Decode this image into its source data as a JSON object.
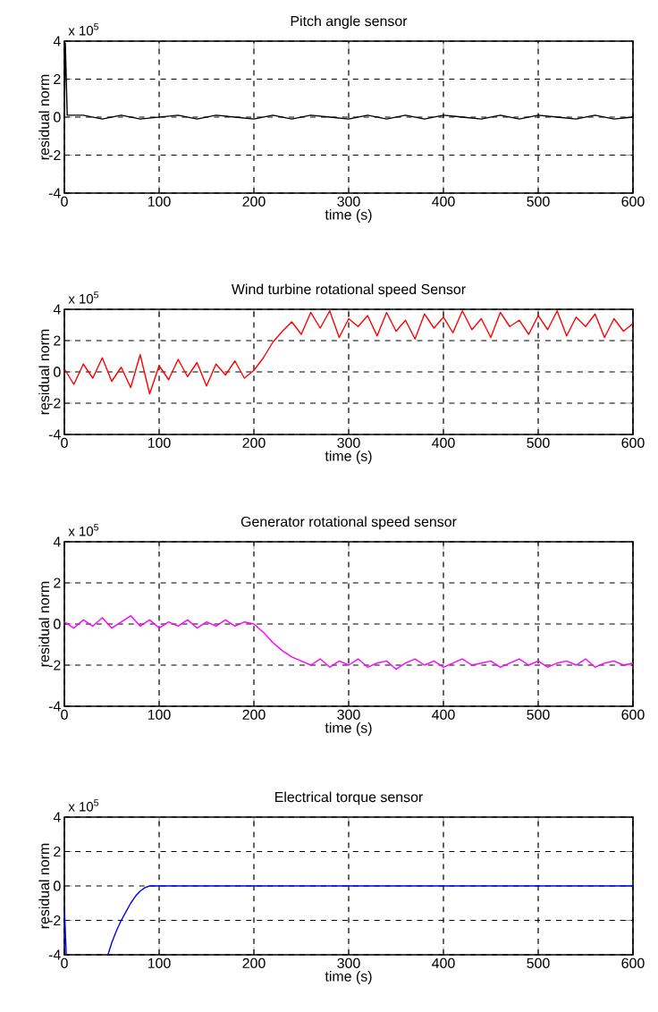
{
  "chart_data": [
    {
      "type": "line",
      "title": "Pitch angle sensor",
      "xlabel": "time (s)",
      "ylabel": "residual norm",
      "annotations": [
        "x 10$^{5}$"
      ],
      "grid": true,
      "line_style": "solid",
      "xlim": [
        0,
        600
      ],
      "ylim": [
        -4,
        4
      ],
      "xticks": [
        0,
        100,
        200,
        300,
        400,
        500,
        600
      ],
      "yticks": [
        -4,
        -2,
        0,
        2,
        4
      ],
      "series": [
        {
          "color": "#000000",
          "x": [
            0,
            1,
            3,
            20,
            40,
            60,
            80,
            100,
            120,
            140,
            160,
            180,
            200,
            220,
            240,
            260,
            280,
            300,
            320,
            340,
            360,
            380,
            400,
            420,
            440,
            460,
            480,
            500,
            520,
            540,
            560,
            580,
            600
          ],
          "values": [
            0.3,
            3.9,
            0.1,
            0.1,
            -0.1,
            0.1,
            -0.1,
            0.0,
            0.1,
            -0.1,
            0.1,
            0.0,
            -0.1,
            0.1,
            -0.1,
            0.1,
            0.0,
            -0.1,
            0.1,
            -0.1,
            0.1,
            -0.1,
            0.1,
            0.0,
            -0.1,
            0.1,
            -0.1,
            0.1,
            0.0,
            -0.1,
            0.1,
            -0.1,
            0.0
          ]
        }
      ]
    },
    {
      "type": "line",
      "title": "Wind turbine rotational speed Sensor",
      "xlabel": "time (s)",
      "ylabel": "residual norm",
      "annotations": [
        "x 10$^{5}$"
      ],
      "grid": true,
      "line_style": "solid",
      "xlim": [
        0,
        600
      ],
      "ylim": [
        -4,
        4
      ],
      "xticks": [
        0,
        100,
        200,
        300,
        400,
        500,
        600
      ],
      "yticks": [
        -4,
        -2,
        0,
        2,
        4
      ],
      "series": [
        {
          "color": "#ff0000",
          "x": [
            0,
            10,
            20,
            30,
            40,
            50,
            60,
            70,
            80,
            90,
            100,
            110,
            120,
            130,
            140,
            150,
            160,
            170,
            180,
            190,
            200,
            210,
            220,
            230,
            240,
            250,
            260,
            270,
            280,
            290,
            300,
            310,
            320,
            330,
            340,
            350,
            360,
            370,
            380,
            390,
            400,
            410,
            420,
            430,
            440,
            450,
            460,
            470,
            480,
            490,
            500,
            510,
            520,
            530,
            540,
            550,
            560,
            570,
            580,
            590,
            600
          ],
          "values": [
            0.2,
            -0.8,
            0.5,
            -0.4,
            0.9,
            -0.6,
            0.3,
            -1.0,
            1.1,
            -1.4,
            0.4,
            -0.5,
            0.8,
            -0.3,
            0.6,
            -0.9,
            0.5,
            -0.2,
            0.7,
            -0.4,
            0.1,
            0.9,
            1.9,
            2.6,
            3.2,
            2.4,
            3.8,
            2.8,
            3.9,
            2.2,
            3.4,
            2.9,
            3.6,
            2.3,
            3.8,
            2.6,
            3.3,
            2.1,
            3.7,
            2.8,
            3.5,
            2.5,
            3.9,
            2.7,
            3.4,
            2.2,
            3.8,
            2.9,
            3.3,
            2.4,
            3.6,
            2.7,
            3.9,
            2.3,
            3.5,
            2.9,
            3.7,
            2.2,
            3.4,
            2.6,
            3.1
          ]
        }
      ]
    },
    {
      "type": "line",
      "title": "Generator rotational speed sensor",
      "xlabel": "time (s)",
      "ylabel": "residual norm",
      "annotations": [
        "x 10$^{5}$"
      ],
      "grid": true,
      "line_style": "solid",
      "xlim": [
        0,
        600
      ],
      "ylim": [
        -4,
        4
      ],
      "xticks": [
        0,
        100,
        200,
        300,
        400,
        500,
        600
      ],
      "yticks": [
        -4,
        -2,
        0,
        2,
        4
      ],
      "series": [
        {
          "color": "#ff00ff",
          "x": [
            0,
            10,
            20,
            30,
            40,
            50,
            60,
            70,
            80,
            90,
            100,
            110,
            120,
            130,
            140,
            150,
            160,
            170,
            180,
            190,
            200,
            210,
            220,
            230,
            240,
            250,
            260,
            270,
            280,
            290,
            300,
            310,
            320,
            330,
            340,
            350,
            360,
            370,
            380,
            390,
            400,
            410,
            420,
            430,
            440,
            450,
            460,
            470,
            480,
            490,
            500,
            510,
            520,
            530,
            540,
            550,
            560,
            570,
            580,
            590,
            600
          ],
          "values": [
            0.1,
            -0.2,
            0.2,
            -0.1,
            0.3,
            -0.2,
            0.1,
            0.4,
            -0.1,
            0.2,
            -0.2,
            0.1,
            -0.1,
            0.2,
            -0.2,
            0.1,
            -0.1,
            0.2,
            -0.1,
            0.1,
            0.0,
            -0.4,
            -0.9,
            -1.3,
            -1.6,
            -1.8,
            -2.0,
            -1.7,
            -2.1,
            -1.8,
            -2.0,
            -1.7,
            -2.1,
            -1.9,
            -1.8,
            -2.2,
            -1.9,
            -1.7,
            -2.0,
            -1.8,
            -2.1,
            -1.9,
            -1.7,
            -2.0,
            -1.9,
            -1.8,
            -2.1,
            -1.9,
            -1.7,
            -2.0,
            -1.8,
            -2.1,
            -1.9,
            -1.8,
            -2.0,
            -1.7,
            -2.1,
            -1.9,
            -1.8,
            -2.0,
            -1.9
          ]
        }
      ]
    },
    {
      "type": "line",
      "title": "Electrical torque sensor",
      "xlabel": "time (s)",
      "ylabel": "residual norm",
      "annotations": [
        "x 10$^{5}$"
      ],
      "grid": true,
      "line_style": "solid",
      "xlim": [
        0,
        600
      ],
      "ylim": [
        -4,
        4
      ],
      "xticks": [
        0,
        100,
        200,
        300,
        400,
        500,
        600
      ],
      "yticks": [
        -4,
        -2,
        0,
        2,
        4
      ],
      "series": [
        {
          "color": "#0000ff",
          "x": [
            0,
            2,
            20,
            46,
            50,
            55,
            60,
            65,
            70,
            75,
            80,
            85,
            90,
            100,
            150,
            200,
            300,
            400,
            500,
            600
          ],
          "values": [
            -1.2,
            -4,
            null,
            -4,
            -3.3,
            -2.6,
            -2.0,
            -1.5,
            -1.0,
            -0.6,
            -0.3,
            -0.1,
            0.0,
            0.0,
            0.0,
            0.0,
            0.0,
            0.0,
            0.0,
            0.0
          ]
        }
      ]
    }
  ]
}
